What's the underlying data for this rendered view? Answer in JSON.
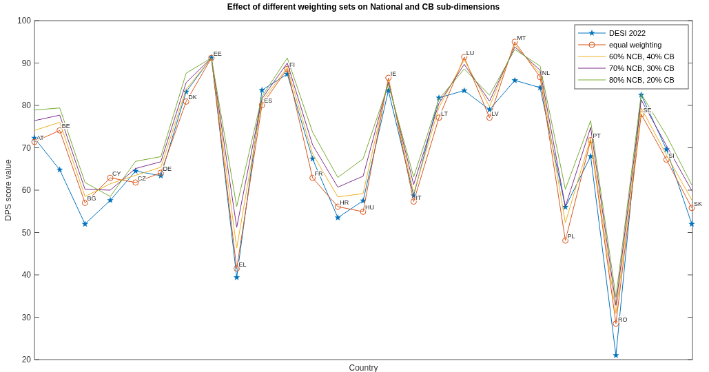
{
  "chart_data": {
    "type": "line",
    "title": "Effect of different weighting sets on National and CB sub-dimensions",
    "xlabel": "Country",
    "ylabel": "DPS score value",
    "categories": [
      null,
      null,
      null,
      null,
      null,
      null,
      null,
      null,
      null,
      null,
      null,
      null,
      null,
      null,
      null,
      null,
      null,
      null,
      null,
      null,
      null,
      null,
      null,
      null,
      null,
      null,
      null
    ],
    "series": [
      {
        "name": "DESI 2022",
        "color": "#0072bd",
        "marker": "star",
        "values": [
          72.3,
          64.8,
          52.0,
          57.6,
          64.5,
          63.4,
          83.2,
          91.3,
          39.4,
          83.6,
          87.4,
          67.4,
          53.5,
          57.5,
          83.5,
          58.7,
          81.8,
          83.5,
          79.0,
          85.9,
          84.2,
          56.0,
          68.0,
          21.0,
          82.5,
          69.6,
          52.0
        ]
      },
      {
        "name": "equal weighting",
        "color": "#d95319",
        "marker": "circle",
        "values": [
          71.4,
          74.1,
          57.0,
          62.9,
          61.8,
          64.1,
          80.9,
          91.2,
          41.5,
          80.1,
          88.6,
          62.9,
          56.1,
          54.9,
          86.5,
          57.3,
          77.1,
          91.4,
          77.1,
          95.0,
          86.7,
          48.1,
          71.8,
          28.5,
          77.9,
          67.2,
          55.8
        ]
      },
      {
        "name": "60% NCB, 40% CB",
        "color": "#edb120",
        "marker": "none",
        "values": [
          74.1,
          76.0,
          58.5,
          61.5,
          63.5,
          65.4,
          83.8,
          91.2,
          46.3,
          81.0,
          88.9,
          68.6,
          58.4,
          59.2,
          86.0,
          59.3,
          79.5,
          90.8,
          79.7,
          94.3,
          87.5,
          52.3,
          72.3,
          30.9,
          79.4,
          68.3,
          57.7
        ]
      },
      {
        "name": "70% NCB, 30% CB",
        "color": "#7e2f8e",
        "marker": "none",
        "values": [
          76.4,
          77.7,
          60.2,
          60.0,
          65.1,
          66.7,
          85.4,
          91.2,
          51.2,
          81.6,
          90.0,
          70.7,
          60.7,
          63.3,
          85.5,
          61.3,
          80.5,
          89.7,
          81.0,
          93.8,
          88.3,
          56.1,
          74.8,
          32.8,
          81.3,
          70.5,
          59.9
        ]
      },
      {
        "name": "80% NCB, 20% CB",
        "color": "#77ac30",
        "marker": "none",
        "values": [
          78.9,
          79.4,
          61.8,
          58.5,
          66.8,
          67.9,
          87.6,
          91.2,
          56.1,
          82.1,
          91.2,
          73.7,
          63.0,
          67.4,
          85.0,
          63.1,
          81.5,
          88.6,
          82.4,
          93.2,
          89.3,
          60.2,
          76.4,
          34.7,
          82.7,
          72.9,
          61.2
        ]
      }
    ],
    "annotations": [
      "AT",
      "BE",
      "BG",
      "CY",
      "CZ",
      "DE",
      "DK",
      "EE",
      "EL",
      "ES",
      "FI",
      "FR",
      "HR",
      "HU",
      "IE",
      "IT",
      "LT",
      "LU",
      "LV",
      "MT",
      "NL",
      "PL",
      "PT",
      "RO",
      "SE",
      "SI",
      "SK"
    ],
    "ylim": [
      20,
      100
    ],
    "yticks": [
      20,
      30,
      40,
      50,
      60,
      70,
      80,
      90,
      100
    ],
    "grid": false,
    "legend": "top right",
    "tick_labels": "y"
  }
}
